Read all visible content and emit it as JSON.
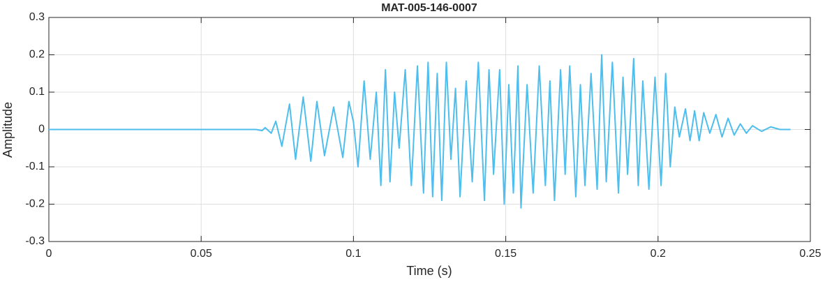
{
  "chart_data": {
    "type": "line",
    "title": "MAT-005-146-0007",
    "xlabel": "Time (s)",
    "ylabel": "Amplitude",
    "xlim": [
      0,
      0.25
    ],
    "xticks": [
      0,
      0.05,
      0.1,
      0.15,
      0.2,
      0.25
    ],
    "ylim": [
      -0.3,
      0.3
    ],
    "yticks": [
      -0.3,
      -0.2,
      -0.1,
      0,
      0.1,
      0.2,
      0.3
    ],
    "grid": true,
    "series": [
      {
        "color": "#4dbeee",
        "x": [
          0,
          0.068,
          0.07,
          0.071,
          0.073,
          0.0745,
          0.0765,
          0.079,
          0.081,
          0.0835,
          0.086,
          0.088,
          0.0905,
          0.0935,
          0.0965,
          0.0985,
          0.1,
          0.1015,
          0.1035,
          0.1055,
          0.1075,
          0.109,
          0.1105,
          0.112,
          0.1135,
          0.115,
          0.117,
          0.119,
          0.121,
          0.123,
          0.1245,
          0.126,
          0.1275,
          0.129,
          0.1305,
          0.132,
          0.1335,
          0.135,
          0.137,
          0.139,
          0.141,
          0.143,
          0.1445,
          0.146,
          0.148,
          0.1495,
          0.151,
          0.1525,
          0.154,
          0.155,
          0.157,
          0.159,
          0.161,
          0.163,
          0.1645,
          0.166,
          0.168,
          0.1695,
          0.171,
          0.173,
          0.1745,
          0.176,
          0.178,
          0.18,
          0.1815,
          0.183,
          0.185,
          0.187,
          0.1885,
          0.19,
          0.192,
          0.1935,
          0.195,
          0.197,
          0.199,
          0.201,
          0.2025,
          0.204,
          0.2055,
          0.207,
          0.209,
          0.2105,
          0.212,
          0.2135,
          0.215,
          0.217,
          0.219,
          0.221,
          0.223,
          0.225,
          0.227,
          0.229,
          0.231,
          0.234,
          0.237,
          0.24,
          0.2435
        ],
        "values": [
          0,
          0,
          -0.003,
          0.005,
          -0.01,
          0.022,
          -0.045,
          0.068,
          -0.08,
          0.087,
          -0.085,
          0.075,
          -0.07,
          0.06,
          -0.075,
          0.075,
          0.02,
          -0.1,
          0.13,
          -0.08,
          0.1,
          -0.15,
          0.16,
          -0.14,
          0.1,
          -0.05,
          0.16,
          -0.15,
          0.17,
          -0.17,
          0.18,
          -0.18,
          0.15,
          -0.19,
          0.18,
          -0.08,
          0.11,
          -0.18,
          0.13,
          -0.14,
          0.18,
          -0.19,
          0.16,
          -0.12,
          0.16,
          -0.2,
          0.12,
          -0.17,
          0.17,
          -0.21,
          0.12,
          -0.17,
          0.17,
          -0.15,
          0.13,
          -0.19,
          0.16,
          -0.12,
          0.17,
          -0.18,
          0.12,
          -0.15,
          0.15,
          -0.16,
          0.2,
          -0.14,
          0.18,
          -0.17,
          0.14,
          -0.12,
          0.19,
          -0.15,
          0.13,
          -0.16,
          0.14,
          -0.15,
          0.15,
          -0.1,
          0.06,
          -0.02,
          0.055,
          -0.03,
          0.05,
          -0.03,
          0.045,
          -0.01,
          0.04,
          -0.02,
          0.03,
          -0.015,
          0.015,
          -0.01,
          0.01,
          -0.005,
          0.007,
          0,
          0
        ]
      }
    ]
  }
}
